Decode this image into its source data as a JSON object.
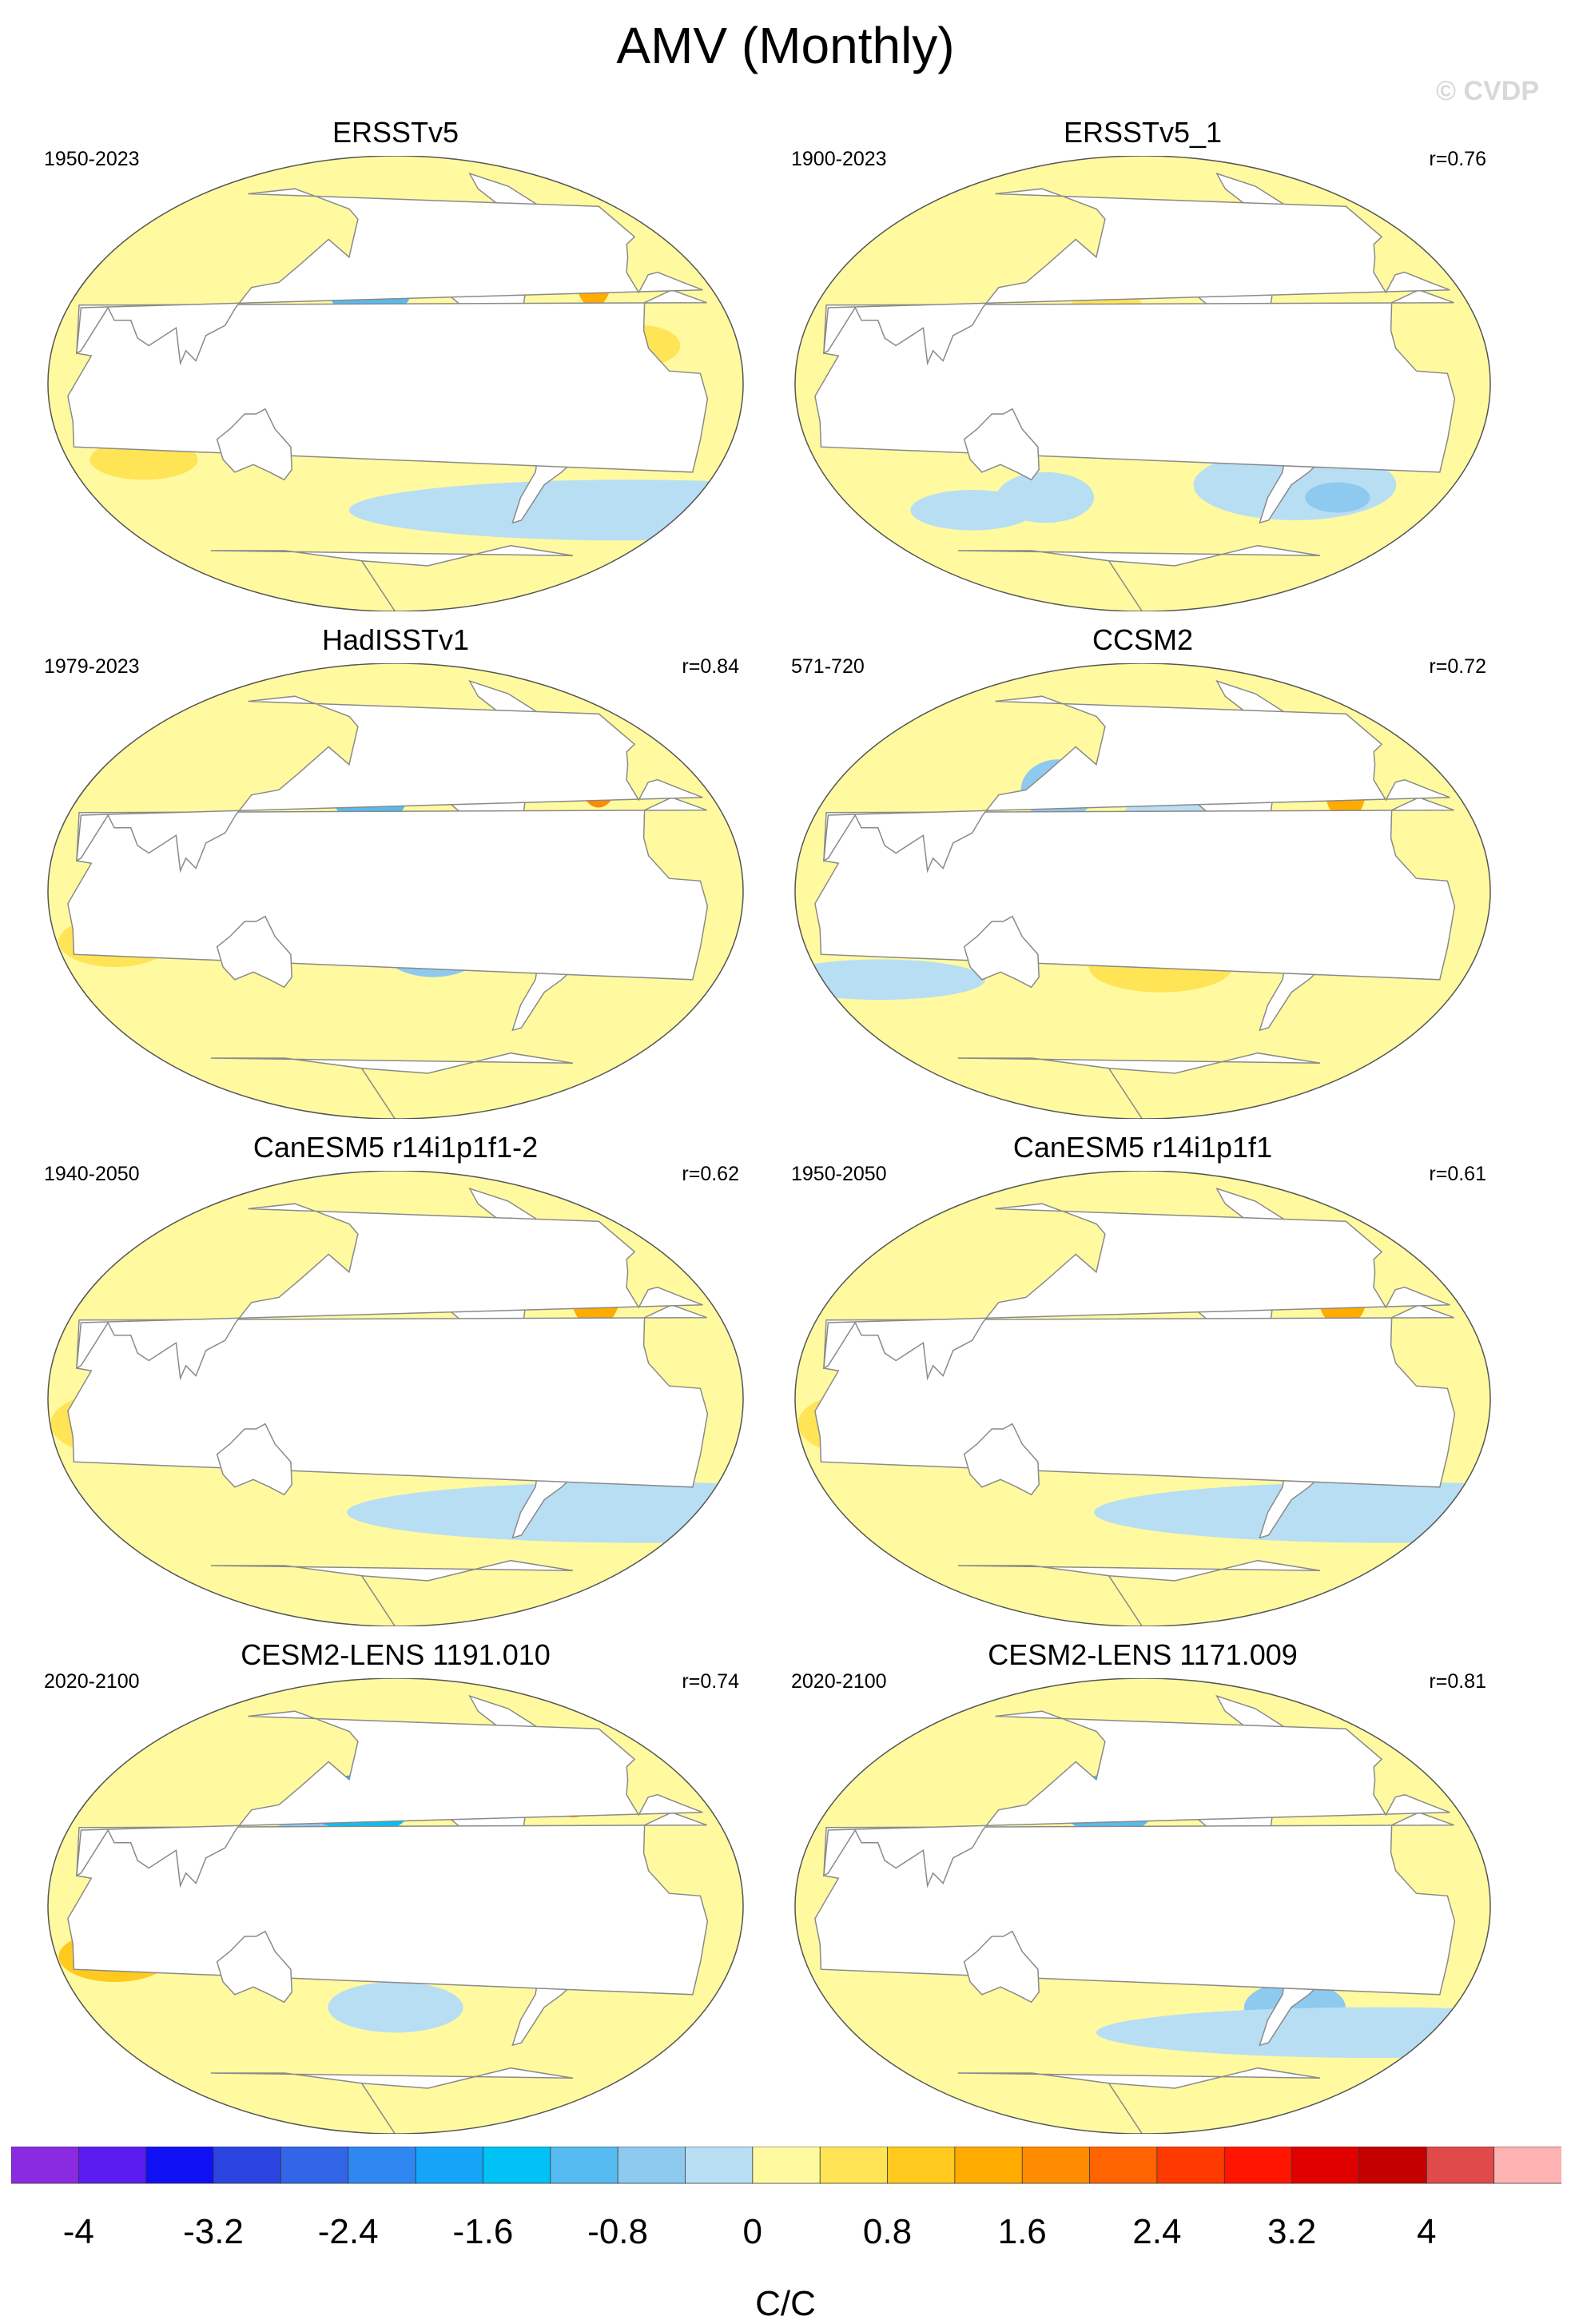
{
  "title": "AMV (Monthly)",
  "watermark": "© CVDP",
  "colors": {
    "land": "#ffffff",
    "coast": "#8a8a8a",
    "neutral_pos": "#fff8a8",
    "neutral_neg": "#bfe3f5"
  },
  "panels": [
    {
      "title": "ERSSTv5",
      "period": "1950-2023",
      "corr": ""
    },
    {
      "title": "ERSSTv5_1",
      "period": "1900-2023",
      "corr": "r=0.76"
    },
    {
      "title": "HadISSTv1",
      "period": "1979-2023",
      "corr": "r=0.84"
    },
    {
      "title": "CCSM2",
      "period": "571-720",
      "corr": "r=0.72"
    },
    {
      "title": "CanESM5 r14i1p1f1-2",
      "period": "1940-2050",
      "corr": "r=0.62"
    },
    {
      "title": "CanESM5 r14i1p1f1",
      "period": "1950-2050",
      "corr": "r=0.61"
    },
    {
      "title": "CESM2-LENS 1191.010",
      "period": "2020-2100",
      "corr": "r=0.74"
    },
    {
      "title": "CESM2-LENS 1171.009",
      "period": "2020-2100",
      "corr": "r=0.81"
    }
  ],
  "chart_data": {
    "type": "heatmap",
    "title": "AMV (Monthly)",
    "colorbar": {
      "label": "C/C",
      "levels": [
        -4.4,
        -4.0,
        -3.6,
        -3.2,
        -2.8,
        -2.4,
        -2.0,
        -1.6,
        -1.2,
        -0.8,
        -0.4,
        0,
        0.4,
        0.8,
        1.2,
        1.6,
        2.0,
        2.4,
        2.8,
        3.2,
        3.6,
        4.0,
        4.4
      ],
      "colors": [
        "#8a2be2",
        "#5a1cf0",
        "#1010f5",
        "#2c44e0",
        "#3366e6",
        "#2f88f2",
        "#15a4f7",
        "#00c2f5",
        "#55bbf0",
        "#8ec9ef",
        "#b8def4",
        "#fffaa0",
        "#ffe455",
        "#ffc91e",
        "#ffab00",
        "#ff8c00",
        "#ff6400",
        "#ff3a00",
        "#ff1500",
        "#e00000",
        "#c40000",
        "#e04a4a",
        "#ffb2b2"
      ],
      "tick_values": [
        -4,
        -3.2,
        -2.4,
        -1.6,
        -0.8,
        0,
        0.8,
        1.6,
        2.4,
        3.2,
        4
      ],
      "tick_labels": [
        "-4",
        "-3.2",
        "-2.4",
        "-1.6",
        "-0.8",
        "0",
        "0.8",
        "1.6",
        "2.4",
        "3.2",
        "4"
      ]
    },
    "panels": [
      {
        "name": "ERSSTv5",
        "background": 0.2,
        "features": [
          {
            "lon": -165,
            "lat": 38,
            "w": 25,
            "h": 12,
            "v": -1.0
          },
          {
            "lon": -160,
            "lat": 40,
            "w": 10,
            "h": 6,
            "v": -1.6
          },
          {
            "lon": -120,
            "lat": -10,
            "w": 40,
            "h": 14,
            "v": -0.4
          },
          {
            "lon": -115,
            "lat": -15,
            "w": 20,
            "h": 6,
            "v": -0.8
          },
          {
            "lon": -38,
            "lat": 52,
            "w": 18,
            "h": 10,
            "v": 1.6
          },
          {
            "lon": -28,
            "lat": 45,
            "w": 12,
            "h": 15,
            "v": 1.4
          },
          {
            "lon": -40,
            "lat": 55,
            "w": 8,
            "h": 5,
            "v": 2.0
          },
          {
            "lon": 0,
            "lat": -50,
            "w": 180,
            "h": 12,
            "v": -0.4
          },
          {
            "lon": 70,
            "lat": -30,
            "w": 30,
            "h": 8,
            "v": 0.6
          },
          {
            "lon": -20,
            "lat": 15,
            "w": 20,
            "h": 8,
            "v": 0.7
          }
        ]
      },
      {
        "name": "ERSSTv5_1",
        "background": 0.25,
        "features": [
          {
            "lon": -40,
            "lat": 50,
            "w": 20,
            "h": 14,
            "v": 1.4
          },
          {
            "lon": -30,
            "lat": 45,
            "w": 10,
            "h": 8,
            "v": 1.6
          },
          {
            "lon": -40,
            "lat": 60,
            "w": 8,
            "h": 5,
            "v": 1.6
          },
          {
            "lon": -60,
            "lat": -40,
            "w": 60,
            "h": 14,
            "v": -0.4
          },
          {
            "lon": -30,
            "lat": -45,
            "w": 20,
            "h": 6,
            "v": -0.8
          },
          {
            "lon": 150,
            "lat": -45,
            "w": 30,
            "h": 10,
            "v": -0.4
          },
          {
            "lon": 100,
            "lat": -50,
            "w": 40,
            "h": 8,
            "v": -0.4
          },
          {
            "lon": -170,
            "lat": 30,
            "w": 20,
            "h": 8,
            "v": 0.6
          }
        ]
      },
      {
        "name": "HadISSTv1",
        "background": 0.2,
        "features": [
          {
            "lon": -165,
            "lat": 38,
            "w": 22,
            "h": 12,
            "v": -1.0
          },
          {
            "lon": -160,
            "lat": 40,
            "w": 8,
            "h": 6,
            "v": -1.6
          },
          {
            "lon": -130,
            "lat": -20,
            "w": 30,
            "h": 14,
            "v": -0.5
          },
          {
            "lon": -40,
            "lat": 58,
            "w": 12,
            "h": 8,
            "v": 2.2
          },
          {
            "lon": -25,
            "lat": 45,
            "w": 12,
            "h": 12,
            "v": 1.6
          },
          {
            "lon": -50,
            "lat": 45,
            "w": 10,
            "h": 5,
            "v": -0.4
          },
          {
            "lon": -170,
            "lat": 10,
            "w": 20,
            "h": 8,
            "v": -0.4
          },
          {
            "lon": 60,
            "lat": -20,
            "w": 30,
            "h": 10,
            "v": 0.5
          }
        ]
      },
      {
        "name": "CCSM2",
        "background": 0.25,
        "features": [
          {
            "lon": 160,
            "lat": 40,
            "w": 22,
            "h": 12,
            "v": -0.8
          },
          {
            "lon": 165,
            "lat": 45,
            "w": 10,
            "h": 6,
            "v": -1.2
          },
          {
            "lon": -130,
            "lat": 30,
            "w": 30,
            "h": 12,
            "v": -0.4
          },
          {
            "lon": -110,
            "lat": 10,
            "w": 60,
            "h": 6,
            "v": 1.2
          },
          {
            "lon": -35,
            "lat": 55,
            "w": 15,
            "h": 10,
            "v": 1.6
          },
          {
            "lon": -30,
            "lat": 40,
            "w": 12,
            "h": 12,
            "v": 1.4
          },
          {
            "lon": 60,
            "lat": -35,
            "w": 60,
            "h": 8,
            "v": -0.4
          },
          {
            "lon": -140,
            "lat": -30,
            "w": 40,
            "h": 10,
            "v": 0.6
          },
          {
            "lon": 130,
            "lat": -20,
            "w": 20,
            "h": 8,
            "v": -0.4
          }
        ]
      },
      {
        "name": "CanESM5 r14i1p1f1-2",
        "background": 0.3,
        "features": [
          {
            "lon": -40,
            "lat": 58,
            "w": 12,
            "h": 10,
            "v": 2.2
          },
          {
            "lon": -30,
            "lat": 42,
            "w": 15,
            "h": 14,
            "v": 1.4
          },
          {
            "lon": -160,
            "lat": 55,
            "w": 20,
            "h": 8,
            "v": 1.0
          },
          {
            "lon": 0,
            "lat": -45,
            "w": 180,
            "h": 12,
            "v": -0.4
          },
          {
            "lon": 60,
            "lat": -10,
            "w": 30,
            "h": 12,
            "v": 0.7
          },
          {
            "lon": -140,
            "lat": 10,
            "w": 40,
            "h": 12,
            "v": 0.6
          }
        ]
      },
      {
        "name": "CanESM5 r14i1p1f1",
        "background": 0.3,
        "features": [
          {
            "lon": -40,
            "lat": 58,
            "w": 12,
            "h": 10,
            "v": 2.4
          },
          {
            "lon": -30,
            "lat": 42,
            "w": 15,
            "h": 14,
            "v": 1.4
          },
          {
            "lon": -160,
            "lat": 55,
            "w": 20,
            "h": 8,
            "v": 1.0
          },
          {
            "lon": 0,
            "lat": -45,
            "w": 180,
            "h": 12,
            "v": -0.4
          },
          {
            "lon": 60,
            "lat": -10,
            "w": 30,
            "h": 12,
            "v": 0.7
          },
          {
            "lon": -140,
            "lat": 10,
            "w": 40,
            "h": 12,
            "v": 0.6
          }
        ]
      },
      {
        "name": "CESM2-LENS 1191.010",
        "background": 0.3,
        "features": [
          {
            "lon": -170,
            "lat": 40,
            "w": 30,
            "h": 12,
            "v": -1.4
          },
          {
            "lon": -160,
            "lat": 43,
            "w": 12,
            "h": 6,
            "v": -2.0
          },
          {
            "lon": 160,
            "lat": 25,
            "w": 25,
            "h": 8,
            "v": -0.8
          },
          {
            "lon": 160,
            "lat": -10,
            "w": 30,
            "h": 8,
            "v": -0.8
          },
          {
            "lon": -120,
            "lat": 15,
            "w": 50,
            "h": 8,
            "v": 1.4
          },
          {
            "lon": -125,
            "lat": 12,
            "w": 35,
            "h": 5,
            "v": 1.8
          },
          {
            "lon": -35,
            "lat": 50,
            "w": 20,
            "h": 15,
            "v": 1.4
          },
          {
            "lon": 60,
            "lat": -20,
            "w": 30,
            "h": 10,
            "v": 0.8
          },
          {
            "lon": -150,
            "lat": -40,
            "w": 40,
            "h": 10,
            "v": -0.4
          }
        ]
      },
      {
        "name": "CESM2-LENS 1171.009",
        "background": 0.25,
        "features": [
          {
            "lon": -170,
            "lat": 40,
            "w": 28,
            "h": 12,
            "v": -1.0
          },
          {
            "lon": -160,
            "lat": 43,
            "w": 10,
            "h": 5,
            "v": -1.4
          },
          {
            "lon": 150,
            "lat": -10,
            "w": 30,
            "h": 8,
            "v": -0.6
          },
          {
            "lon": -35,
            "lat": 52,
            "w": 18,
            "h": 12,
            "v": 1.4
          },
          {
            "lon": -40,
            "lat": 60,
            "w": 8,
            "h": 5,
            "v": 1.8
          },
          {
            "lon": -60,
            "lat": -40,
            "w": 30,
            "h": 10,
            "v": -0.6
          },
          {
            "lon": 0,
            "lat": -50,
            "w": 180,
            "h": 10,
            "v": -0.4
          }
        ]
      }
    ]
  }
}
